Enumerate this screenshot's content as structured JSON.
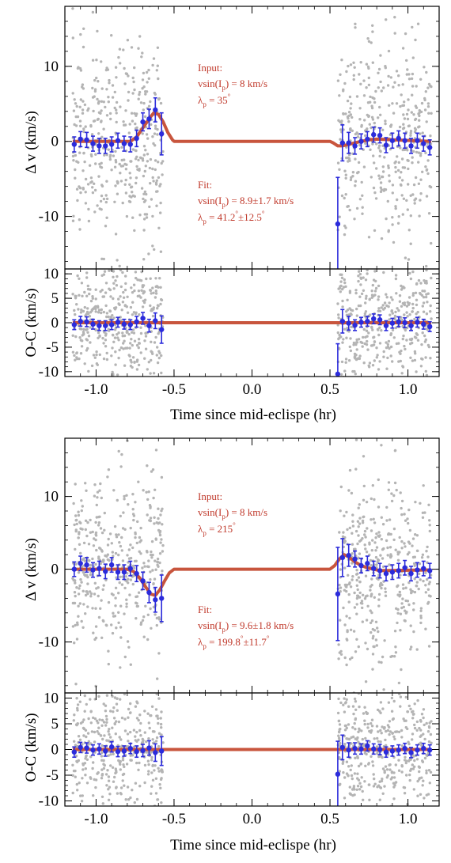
{
  "colors": {
    "model": "#c8553d",
    "binned": "#2b2bdb",
    "scatter": "#b4b4b4",
    "annotation": "#c0392b",
    "axes": "#000000"
  },
  "xlabel": "Time since mid-eclispe (hr)",
  "chart_data": [
    {
      "type": "scatter",
      "panel": "top-dv",
      "ylabel": "Δ v (km/s)",
      "xlim": [
        -1.2,
        1.2
      ],
      "ylim": [
        -17,
        18
      ],
      "yticks": [
        -10,
        0,
        10
      ],
      "xticks": [
        -1.0,
        -0.5,
        0.0,
        0.5,
        1.0
      ],
      "xtick_labels": [
        "-1.0",
        "-0.5",
        "0.0",
        "0.5",
        "1.0"
      ],
      "annotations": {
        "input_title": "Input:",
        "input_vsin": "vsin(I",
        "input_vsin_sub": "p",
        "input_vsin_val": ") = 8 km/s",
        "input_lambda": "λ",
        "input_lambda_sub": "p",
        "input_lambda_val": " = 35",
        "input_lambda_sup": "°",
        "fit_title": "Fit:",
        "fit_vsin": "vsin(I",
        "fit_vsin_sub": "p",
        "fit_vsin_val": ") = 8.9±1.7 km/s",
        "fit_lambda": "λ",
        "fit_lambda_sub": "p",
        "fit_lambda_val": " = 41.2",
        "fit_lambda_sup": "°",
        "fit_lambda_err": "±12.5",
        "fit_lambda_err_sup": "°"
      },
      "model_x": [
        -1.15,
        -0.78,
        -0.74,
        -0.7,
        -0.66,
        -0.63,
        -0.6,
        -0.57,
        -0.54,
        -0.51,
        -0.5,
        0.5,
        0.52,
        0.55,
        0.58,
        0.62,
        0.66,
        0.7,
        0.75,
        0.8,
        1.15
      ],
      "model_y": [
        0,
        0,
        0.6,
        1.8,
        3.0,
        3.8,
        3.6,
        2.6,
        1.2,
        0.2,
        0,
        0,
        -0.2,
        -0.6,
        -0.6,
        -0.4,
        -0.2,
        0,
        0.2,
        0.3,
        0
      ],
      "binned": [
        {
          "x": -1.14,
          "y": -0.4,
          "err": 1.0
        },
        {
          "x": -1.1,
          "y": 0.3,
          "err": 1.0
        },
        {
          "x": -1.06,
          "y": 0.2,
          "err": 1.0
        },
        {
          "x": -1.02,
          "y": -0.3,
          "err": 1.0
        },
        {
          "x": -0.98,
          "y": -0.6,
          "err": 1.0
        },
        {
          "x": -0.94,
          "y": -0.6,
          "err": 1.0
        },
        {
          "x": -0.9,
          "y": -0.4,
          "err": 1.0
        },
        {
          "x": -0.86,
          "y": 0.1,
          "err": 1.0
        },
        {
          "x": -0.82,
          "y": -0.3,
          "err": 1.0
        },
        {
          "x": -0.78,
          "y": -0.4,
          "err": 1.0
        },
        {
          "x": -0.74,
          "y": 0.4,
          "err": 1.1
        },
        {
          "x": -0.7,
          "y": 2.6,
          "err": 1.2
        },
        {
          "x": -0.66,
          "y": 3.0,
          "err": 1.3
        },
        {
          "x": -0.62,
          "y": 4.2,
          "err": 1.6
        },
        {
          "x": -0.58,
          "y": 1.0,
          "err": 2.8
        },
        {
          "x": 0.55,
          "y": -11.0,
          "err": 6.2
        },
        {
          "x": 0.58,
          "y": -0.2,
          "err": 2.4
        },
        {
          "x": 0.62,
          "y": -0.2,
          "err": 1.4
        },
        {
          "x": 0.66,
          "y": -0.6,
          "err": 1.1
        },
        {
          "x": 0.7,
          "y": 0.0,
          "err": 1.0
        },
        {
          "x": 0.74,
          "y": 0.3,
          "err": 1.0
        },
        {
          "x": 0.78,
          "y": 0.9,
          "err": 1.0
        },
        {
          "x": 0.82,
          "y": 0.8,
          "err": 1.0
        },
        {
          "x": 0.86,
          "y": -0.5,
          "err": 1.0
        },
        {
          "x": 0.9,
          "y": 0.1,
          "err": 1.0
        },
        {
          "x": 0.94,
          "y": 0.4,
          "err": 1.0
        },
        {
          "x": 0.98,
          "y": 0.1,
          "err": 1.0
        },
        {
          "x": 1.02,
          "y": -0.6,
          "err": 1.0
        },
        {
          "x": 1.06,
          "y": 0.1,
          "err": 1.0
        },
        {
          "x": 1.1,
          "y": -0.3,
          "err": 1.0
        },
        {
          "x": 1.14,
          "y": -0.8,
          "err": 1.0
        }
      ],
      "scatter_ranges": [
        [
          -1.15,
          -0.57
        ],
        [
          0.55,
          1.15
        ]
      ],
      "scatter_sigma": 6.5
    },
    {
      "type": "scatter",
      "panel": "top-oc",
      "ylabel": "O-C (km/s)",
      "xlim": [
        -1.2,
        1.2
      ],
      "ylim": [
        -11,
        11
      ],
      "yticks": [
        -10,
        -5,
        0,
        5,
        10
      ],
      "xticks": [
        -1.0,
        -0.5,
        0.0,
        0.5,
        1.0
      ],
      "xtick_labels": [
        "-1.0",
        "-0.5",
        "0.0",
        "0.5",
        "1.0"
      ],
      "model_x": [
        -1.15,
        1.15
      ],
      "model_y": [
        0,
        0
      ],
      "binned": [
        {
          "x": -1.14,
          "y": -0.4,
          "err": 1.0
        },
        {
          "x": -1.1,
          "y": 0.3,
          "err": 1.0
        },
        {
          "x": -1.06,
          "y": 0.2,
          "err": 1.0
        },
        {
          "x": -1.02,
          "y": -0.3,
          "err": 1.0
        },
        {
          "x": -0.98,
          "y": -0.6,
          "err": 1.0
        },
        {
          "x": -0.94,
          "y": -0.6,
          "err": 1.0
        },
        {
          "x": -0.9,
          "y": -0.4,
          "err": 1.0
        },
        {
          "x": -0.86,
          "y": 0.1,
          "err": 1.0
        },
        {
          "x": -0.82,
          "y": -0.3,
          "err": 1.0
        },
        {
          "x": -0.78,
          "y": -0.4,
          "err": 1.0
        },
        {
          "x": -0.74,
          "y": 0.2,
          "err": 1.1
        },
        {
          "x": -0.7,
          "y": 0.9,
          "err": 1.2
        },
        {
          "x": -0.66,
          "y": -0.6,
          "err": 1.3
        },
        {
          "x": -0.62,
          "y": 0.4,
          "err": 1.6
        },
        {
          "x": -0.58,
          "y": -1.4,
          "err": 2.8
        },
        {
          "x": 0.55,
          "y": -10.5,
          "err": 6.2
        },
        {
          "x": 0.58,
          "y": 0.3,
          "err": 2.4
        },
        {
          "x": 0.62,
          "y": -0.1,
          "err": 1.4
        },
        {
          "x": 0.66,
          "y": -0.5,
          "err": 1.1
        },
        {
          "x": 0.7,
          "y": 0.1,
          "err": 1.0
        },
        {
          "x": 0.74,
          "y": 0.3,
          "err": 1.0
        },
        {
          "x": 0.78,
          "y": 0.8,
          "err": 1.0
        },
        {
          "x": 0.82,
          "y": 0.6,
          "err": 1.0
        },
        {
          "x": 0.86,
          "y": -0.6,
          "err": 1.0
        },
        {
          "x": 0.9,
          "y": -0.1,
          "err": 1.0
        },
        {
          "x": 0.94,
          "y": 0.2,
          "err": 1.0
        },
        {
          "x": 0.98,
          "y": 0.0,
          "err": 1.0
        },
        {
          "x": 1.02,
          "y": -0.6,
          "err": 1.0
        },
        {
          "x": 1.06,
          "y": 0.1,
          "err": 1.0
        },
        {
          "x": 1.1,
          "y": -0.3,
          "err": 1.0
        },
        {
          "x": 1.14,
          "y": -0.8,
          "err": 1.0
        }
      ],
      "scatter_ranges": [
        [
          -1.15,
          -0.57
        ],
        [
          0.55,
          1.15
        ]
      ],
      "scatter_sigma": 6.5
    },
    {
      "type": "scatter",
      "panel": "bottom-dv",
      "ylabel": "Δ v (km/s)",
      "xlim": [
        -1.2,
        1.2
      ],
      "ylim": [
        -17,
        18
      ],
      "yticks": [
        -10,
        0,
        10
      ],
      "xticks": [
        -1.0,
        -0.5,
        0.0,
        0.5,
        1.0
      ],
      "xtick_labels": [
        "-1.0",
        "-0.5",
        "0.0",
        "0.5",
        "1.0"
      ],
      "annotations": {
        "input_title": "Input:",
        "input_vsin": "vsin(I",
        "input_vsin_sub": "p",
        "input_vsin_val": ") = 8 km/s",
        "input_lambda": "λ",
        "input_lambda_sub": "p",
        "input_lambda_val": " = 215",
        "input_lambda_sup": "°",
        "fit_title": "Fit:",
        "fit_vsin": "vsin(I",
        "fit_vsin_sub": "p",
        "fit_vsin_val": ") = 9.6±1.8 km/s",
        "fit_lambda": "λ",
        "fit_lambda_sub": "p",
        "fit_lambda_val": " = 199.8",
        "fit_lambda_sup": "°",
        "fit_lambda_err": "±11.7",
        "fit_lambda_err_sup": "°"
      },
      "model_x": [
        -1.15,
        -0.8,
        -0.76,
        -0.72,
        -0.68,
        -0.65,
        -0.62,
        -0.59,
        -0.56,
        -0.53,
        -0.5,
        0.5,
        0.53,
        0.56,
        0.59,
        0.62,
        0.66,
        0.7,
        0.74,
        0.78,
        0.82,
        1.15
      ],
      "model_y": [
        0,
        0,
        -0.3,
        -1.2,
        -2.5,
        -3.4,
        -3.6,
        -2.8,
        -1.6,
        -0.5,
        0,
        0,
        0.5,
        1.4,
        2.0,
        1.7,
        1.0,
        0.5,
        0.2,
        0.0,
        -0.2,
        -0.1
      ],
      "binned": [
        {
          "x": -1.14,
          "y": 0.0,
          "err": 1.0
        },
        {
          "x": -1.1,
          "y": 0.8,
          "err": 1.0
        },
        {
          "x": -1.06,
          "y": 0.6,
          "err": 1.0
        },
        {
          "x": -1.02,
          "y": -0.1,
          "err": 1.0
        },
        {
          "x": -0.98,
          "y": 0.1,
          "err": 1.0
        },
        {
          "x": -0.94,
          "y": -0.3,
          "err": 1.0
        },
        {
          "x": -0.9,
          "y": 0.6,
          "err": 1.0
        },
        {
          "x": -0.86,
          "y": -0.4,
          "err": 1.0
        },
        {
          "x": -0.82,
          "y": -0.4,
          "err": 1.0
        },
        {
          "x": -0.78,
          "y": 0.1,
          "err": 1.0
        },
        {
          "x": -0.74,
          "y": -0.6,
          "err": 1.1
        },
        {
          "x": -0.7,
          "y": -1.6,
          "err": 1.2
        },
        {
          "x": -0.66,
          "y": -3.2,
          "err": 1.4
        },
        {
          "x": -0.62,
          "y": -4.2,
          "err": 1.7
        },
        {
          "x": -0.58,
          "y": -4.0,
          "err": 3.2
        },
        {
          "x": 0.55,
          "y": -3.4,
          "err": 6.4
        },
        {
          "x": 0.58,
          "y": 1.6,
          "err": 2.6
        },
        {
          "x": 0.62,
          "y": 1.9,
          "err": 1.5
        },
        {
          "x": 0.66,
          "y": 1.4,
          "err": 1.1
        },
        {
          "x": 0.7,
          "y": 0.5,
          "err": 1.0
        },
        {
          "x": 0.74,
          "y": 0.8,
          "err": 1.0
        },
        {
          "x": 0.78,
          "y": 0.1,
          "err": 1.0
        },
        {
          "x": 0.82,
          "y": -0.2,
          "err": 1.0
        },
        {
          "x": 0.86,
          "y": -0.6,
          "err": 1.0
        },
        {
          "x": 0.9,
          "y": -0.4,
          "err": 1.0
        },
        {
          "x": 0.94,
          "y": -0.2,
          "err": 1.0
        },
        {
          "x": 0.98,
          "y": 0.2,
          "err": 1.0
        },
        {
          "x": 1.02,
          "y": -0.6,
          "err": 1.0
        },
        {
          "x": 1.06,
          "y": -0.1,
          "err": 1.0
        },
        {
          "x": 1.1,
          "y": 0.1,
          "err": 1.0
        },
        {
          "x": 1.14,
          "y": -0.2,
          "err": 1.0
        }
      ],
      "scatter_ranges": [
        [
          -1.15,
          -0.57
        ],
        [
          0.55,
          1.15
        ]
      ],
      "scatter_sigma": 6.5
    },
    {
      "type": "scatter",
      "panel": "bottom-oc",
      "ylabel": "O-C (km/s)",
      "xlim": [
        -1.2,
        1.2
      ],
      "ylim": [
        -11,
        11
      ],
      "yticks": [
        -10,
        -5,
        0,
        5,
        10
      ],
      "xticks": [
        -1.0,
        -0.5,
        0.0,
        0.5,
        1.0
      ],
      "xtick_labels": [
        "-1.0",
        "-0.5",
        "0.0",
        "0.5",
        "1.0"
      ],
      "model_x": [
        -1.15,
        1.15
      ],
      "model_y": [
        0,
        0
      ],
      "binned": [
        {
          "x": -1.14,
          "y": -0.5,
          "err": 1.0
        },
        {
          "x": -1.1,
          "y": 0.4,
          "err": 1.0
        },
        {
          "x": -1.06,
          "y": 0.3,
          "err": 1.0
        },
        {
          "x": -1.02,
          "y": -0.1,
          "err": 1.0
        },
        {
          "x": -0.98,
          "y": 0.1,
          "err": 1.0
        },
        {
          "x": -0.94,
          "y": -0.3,
          "err": 1.0
        },
        {
          "x": -0.9,
          "y": 0.5,
          "err": 1.0
        },
        {
          "x": -0.86,
          "y": -0.4,
          "err": 1.0
        },
        {
          "x": -0.82,
          "y": -0.3,
          "err": 1.0
        },
        {
          "x": -0.78,
          "y": 0.2,
          "err": 1.0
        },
        {
          "x": -0.74,
          "y": -0.4,
          "err": 1.1
        },
        {
          "x": -0.7,
          "y": -0.2,
          "err": 1.2
        },
        {
          "x": -0.66,
          "y": 0.3,
          "err": 1.4
        },
        {
          "x": -0.62,
          "y": -0.6,
          "err": 1.7
        },
        {
          "x": -0.58,
          "y": -0.3,
          "err": 2.8
        },
        {
          "x": 0.55,
          "y": -4.8,
          "err": 6.4
        },
        {
          "x": 0.58,
          "y": 0.4,
          "err": 2.4
        },
        {
          "x": 0.62,
          "y": -0.1,
          "err": 1.4
        },
        {
          "x": 0.66,
          "y": 0.2,
          "err": 1.1
        },
        {
          "x": 0.7,
          "y": 0.1,
          "err": 1.0
        },
        {
          "x": 0.74,
          "y": 0.7,
          "err": 1.0
        },
        {
          "x": 0.78,
          "y": 0.1,
          "err": 1.0
        },
        {
          "x": 0.82,
          "y": 0.0,
          "err": 1.0
        },
        {
          "x": 0.86,
          "y": -0.5,
          "err": 1.0
        },
        {
          "x": 0.9,
          "y": -0.3,
          "err": 1.0
        },
        {
          "x": 0.94,
          "y": -0.1,
          "err": 1.0
        },
        {
          "x": 0.98,
          "y": 0.2,
          "err": 1.0
        },
        {
          "x": 1.02,
          "y": -0.6,
          "err": 1.0
        },
        {
          "x": 1.06,
          "y": -0.1,
          "err": 1.0
        },
        {
          "x": 1.1,
          "y": 0.2,
          "err": 1.0
        },
        {
          "x": 1.14,
          "y": -0.1,
          "err": 1.0
        }
      ],
      "scatter_ranges": [
        [
          -1.15,
          -0.57
        ],
        [
          0.55,
          1.15
        ]
      ],
      "scatter_sigma": 6.5
    }
  ]
}
